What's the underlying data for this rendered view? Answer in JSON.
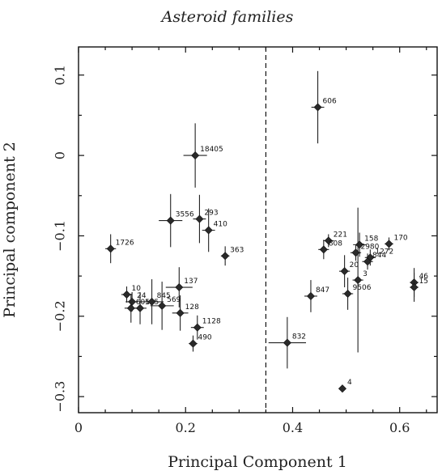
{
  "chart_data": {
    "type": "scatter",
    "title": "Asteroid families",
    "xlabel": "Principal Component 1",
    "ylabel": "Principal component 2",
    "xlim": [
      0,
      0.67
    ],
    "ylim": [
      -0.32,
      0.135
    ],
    "xticks": [
      0,
      0.2,
      0.4,
      0.6
    ],
    "xtick_labels": [
      "0",
      "0.2",
      "0.4",
      "0.6"
    ],
    "yticks": [
      0.1,
      0,
      -0.1,
      -0.2,
      -0.3
    ],
    "ytick_labels": [
      "0.1",
      "0",
      "−0.1",
      "−0.2",
      "−0.3"
    ],
    "vline_x": 0.35,
    "points": [
      {
        "label": "606",
        "x": 0.447,
        "y": 0.06,
        "xerr": 0.012,
        "yerr": 0.045
      },
      {
        "label": "18405",
        "x": 0.218,
        "y": 0.0,
        "xerr": 0.022,
        "yerr": 0.04
      },
      {
        "label": "3556",
        "x": 0.172,
        "y": -0.081,
        "xerr": 0.022,
        "yerr": 0.033
      },
      {
        "label": "293",
        "x": 0.226,
        "y": -0.079,
        "xerr": 0.012,
        "yerr": 0.03
      },
      {
        "label": "410",
        "x": 0.243,
        "y": -0.093,
        "xerr": 0.012,
        "yerr": 0.027
      },
      {
        "label": "1726",
        "x": 0.06,
        "y": -0.116,
        "xerr": 0.01,
        "yerr": 0.018
      },
      {
        "label": "363",
        "x": 0.274,
        "y": -0.125,
        "xerr": 0.008,
        "yerr": 0.012
      },
      {
        "label": "221",
        "x": 0.467,
        "y": -0.106,
        "xerr": 0.01,
        "yerr": 0.008
      },
      {
        "label": "808",
        "x": 0.458,
        "y": -0.117,
        "xerr": 0.01,
        "yerr": 0.012
      },
      {
        "label": "158",
        "x": 0.525,
        "y": -0.111,
        "xerr": 0.012,
        "yerr": 0.015
      },
      {
        "label": "2980",
        "x": 0.518,
        "y": -0.121,
        "xerr": 0.01,
        "yerr": 0.01
      },
      {
        "label": "170",
        "x": 0.58,
        "y": -0.11,
        "xerr": 0.008,
        "yerr": 0.008
      },
      {
        "label": "1272",
        "x": 0.545,
        "y": -0.127,
        "xerr": 0.01,
        "yerr": 0.01
      },
      {
        "label": "844",
        "x": 0.54,
        "y": -0.132,
        "xerr": 0.01,
        "yerr": 0.01
      },
      {
        "label": "20",
        "x": 0.497,
        "y": -0.144,
        "xerr": 0.01,
        "yerr": 0.02
      },
      {
        "label": "3",
        "x": 0.522,
        "y": -0.155,
        "xerr": 0.01,
        "yerr": 0.09
      },
      {
        "label": "46",
        "x": 0.627,
        "y": -0.158,
        "xerr": 0.008,
        "yerr": 0.018
      },
      {
        "label": "15",
        "x": 0.627,
        "y": -0.164,
        "xerr": 0.008,
        "yerr": 0.018
      },
      {
        "label": "9506",
        "x": 0.503,
        "y": -0.172,
        "xerr": 0.01,
        "yerr": 0.02
      },
      {
        "label": "847",
        "x": 0.434,
        "y": -0.175,
        "xerr": 0.012,
        "yerr": 0.02
      },
      {
        "label": "10",
        "x": 0.09,
        "y": -0.173,
        "xerr": 0.01,
        "yerr": 0.01
      },
      {
        "label": "24",
        "x": 0.1,
        "y": -0.182,
        "xerr": 0.012,
        "yerr": 0.012
      },
      {
        "label": "605",
        "x": 0.098,
        "y": -0.19,
        "xerr": 0.012,
        "yerr": 0.018
      },
      {
        "label": "145",
        "x": 0.115,
        "y": -0.19,
        "xerr": 0.012,
        "yerr": 0.02
      },
      {
        "label": "845",
        "x": 0.137,
        "y": -0.182,
        "xerr": 0.022,
        "yerr": 0.028
      },
      {
        "label": "137",
        "x": 0.188,
        "y": -0.164,
        "xerr": 0.025,
        "yerr": 0.025
      },
      {
        "label": "569",
        "x": 0.156,
        "y": -0.187,
        "xerr": 0.022,
        "yerr": 0.03
      },
      {
        "label": "128",
        "x": 0.19,
        "y": -0.196,
        "xerr": 0.015,
        "yerr": 0.022
      },
      {
        "label": "1128",
        "x": 0.222,
        "y": -0.214,
        "xerr": 0.012,
        "yerr": 0.015
      },
      {
        "label": "490",
        "x": 0.214,
        "y": -0.234,
        "xerr": 0.008,
        "yerr": 0.01
      },
      {
        "label": "832",
        "x": 0.39,
        "y": -0.233,
        "xerr": 0.035,
        "yerr": 0.032
      },
      {
        "label": "4",
        "x": 0.493,
        "y": -0.29,
        "xerr": 0.004,
        "yerr": 0.004
      }
    ]
  }
}
